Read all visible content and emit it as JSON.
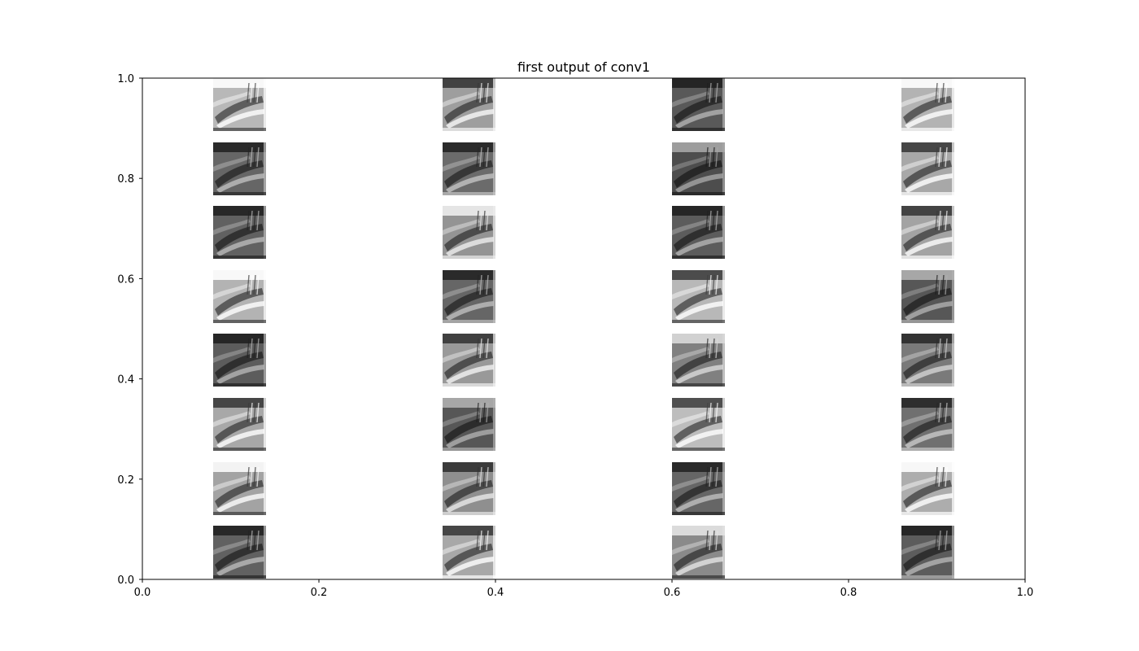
{
  "chart_data": {
    "type": "image_grid",
    "title": "first output of conv1",
    "xlabel": "",
    "ylabel": "",
    "xlim": [
      0.0,
      1.0
    ],
    "ylim": [
      0.0,
      1.0
    ],
    "x_ticks": [
      0.0,
      0.2,
      0.4,
      0.6,
      0.8,
      1.0
    ],
    "x_tick_labels": [
      "0.0",
      "0.2",
      "0.4",
      "0.6",
      "0.8",
      "1.0"
    ],
    "y_ticks": [
      0.0,
      0.2,
      0.4,
      0.6,
      0.8,
      1.0
    ],
    "y_tick_labels": [
      "0.0",
      "0.2",
      "0.4",
      "0.6",
      "0.8",
      "1.0"
    ],
    "grid": false,
    "colormap": "gray",
    "rows": 8,
    "columns": 4,
    "tile_count": 32,
    "tiles": [
      {
        "row": 0,
        "col": 0,
        "tone": 0.72
      },
      {
        "row": 0,
        "col": 1,
        "tone": 0.62
      },
      {
        "row": 0,
        "col": 2,
        "tone": 0.35
      },
      {
        "row": 0,
        "col": 3,
        "tone": 0.7
      },
      {
        "row": 1,
        "col": 0,
        "tone": 0.4
      },
      {
        "row": 1,
        "col": 1,
        "tone": 0.42
      },
      {
        "row": 1,
        "col": 2,
        "tone": 0.3
      },
      {
        "row": 1,
        "col": 3,
        "tone": 0.66
      },
      {
        "row": 2,
        "col": 0,
        "tone": 0.38
      },
      {
        "row": 2,
        "col": 1,
        "tone": 0.58
      },
      {
        "row": 2,
        "col": 2,
        "tone": 0.36
      },
      {
        "row": 2,
        "col": 3,
        "tone": 0.64
      },
      {
        "row": 3,
        "col": 0,
        "tone": 0.7
      },
      {
        "row": 3,
        "col": 1,
        "tone": 0.4
      },
      {
        "row": 3,
        "col": 2,
        "tone": 0.72
      },
      {
        "row": 3,
        "col": 3,
        "tone": 0.34
      },
      {
        "row": 4,
        "col": 0,
        "tone": 0.36
      },
      {
        "row": 4,
        "col": 1,
        "tone": 0.6
      },
      {
        "row": 4,
        "col": 2,
        "tone": 0.5
      },
      {
        "row": 4,
        "col": 3,
        "tone": 0.48
      },
      {
        "row": 5,
        "col": 0,
        "tone": 0.66
      },
      {
        "row": 5,
        "col": 1,
        "tone": 0.34
      },
      {
        "row": 5,
        "col": 2,
        "tone": 0.74
      },
      {
        "row": 5,
        "col": 3,
        "tone": 0.44
      },
      {
        "row": 6,
        "col": 0,
        "tone": 0.64
      },
      {
        "row": 6,
        "col": 1,
        "tone": 0.56
      },
      {
        "row": 6,
        "col": 2,
        "tone": 0.4
      },
      {
        "row": 6,
        "col": 3,
        "tone": 0.68
      },
      {
        "row": 7,
        "col": 0,
        "tone": 0.38
      },
      {
        "row": 7,
        "col": 1,
        "tone": 0.66
      },
      {
        "row": 7,
        "col": 2,
        "tone": 0.54
      },
      {
        "row": 7,
        "col": 3,
        "tone": 0.36
      }
    ]
  }
}
